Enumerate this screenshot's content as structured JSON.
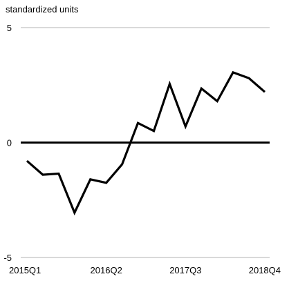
{
  "chart_data": {
    "type": "line",
    "ylabel": "standardized units",
    "ylim": [
      -5,
      5
    ],
    "yticks": [
      {
        "value": 5,
        "label": "5"
      },
      {
        "value": 0,
        "label": "0"
      },
      {
        "value": -5,
        "label": "-5"
      }
    ],
    "x": [
      "2015Q1",
      "2015Q2",
      "2015Q3",
      "2015Q4",
      "2016Q1",
      "2016Q2",
      "2016Q3",
      "2016Q4",
      "2017Q1",
      "2017Q2",
      "2017Q3",
      "2017Q4",
      "2018Q1",
      "2018Q2",
      "2018Q3",
      "2018Q4"
    ],
    "xticks": [
      {
        "index": 0,
        "label": "2015Q1"
      },
      {
        "index": 5,
        "label": "2016Q2"
      },
      {
        "index": 10,
        "label": "2017Q3"
      },
      {
        "index": 15,
        "label": "2018Q4"
      }
    ],
    "series": [
      {
        "values": [
          -0.8,
          -1.4,
          -1.35,
          -3.05,
          -1.6,
          -1.75,
          -0.95,
          0.85,
          0.5,
          2.55,
          0.7,
          2.35,
          1.8,
          3.05,
          2.8,
          2.2
        ],
        "color": "#000000"
      }
    ],
    "grid": "horizontal",
    "zero_line": true,
    "legend": "none"
  }
}
